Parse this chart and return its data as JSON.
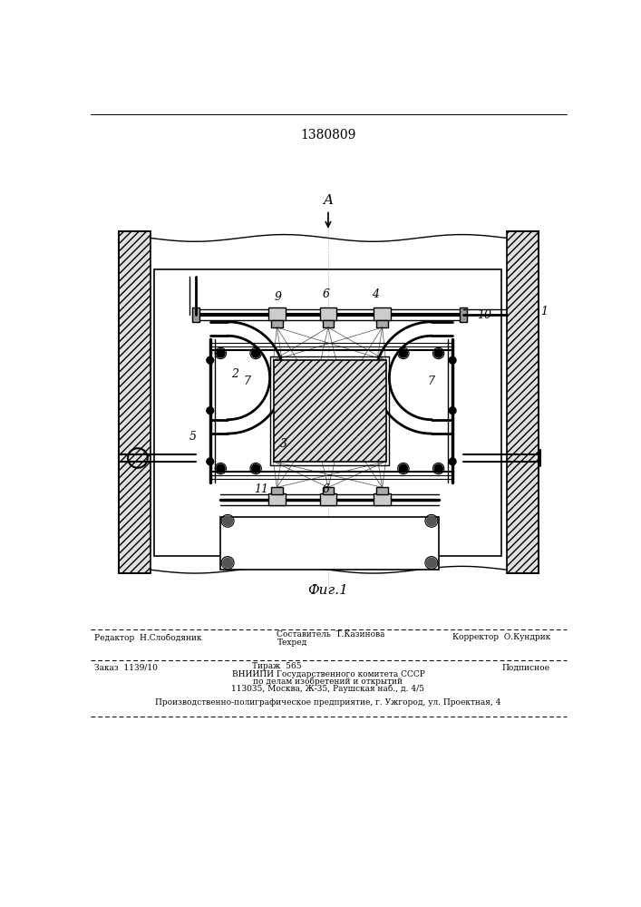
{
  "patent_number": "1380809",
  "fig_label": "Фиг.1",
  "arrow_label": "A",
  "editor_line": "Редактор  Н.Слободяник",
  "compiler_line": "Составитель  Т.Казинова",
  "techred_line": "Техред",
  "corrector_line": "Корректор  О.Кундрик",
  "order_line": "Заказ  1139/10",
  "tirazh_line": "Тираж  565",
  "podpisnoe_line": "Подписное",
  "vniipи_line": "ВНИИПИ Государственного комитета СССР",
  "dela_line": "по делам изобретений и открытий",
  "address_line": "113035, Москва, Ж-35, Раушская наб., д. 4/5",
  "production_line": "Производственно-полиграфическое предприятие, г. Ужгород, ул. Проектная, 4",
  "bg_color": "#ffffff",
  "line_color": "#000000"
}
